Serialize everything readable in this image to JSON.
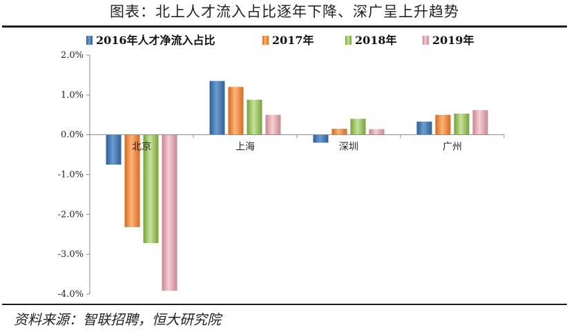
{
  "header": {
    "title": "图表：北上人才流入占比逐年下降、深广呈上升趋势"
  },
  "footer": {
    "source": "资料来源：智联招聘，恒大研究院"
  },
  "chart_data": {
    "type": "bar",
    "title": "图表：北上人才流入占比逐年下降、深广呈上升趋势",
    "xlabel": "",
    "ylabel": "",
    "categories": [
      "北京",
      "上海",
      "深圳",
      "广州"
    ],
    "series": [
      {
        "name": "2016年人才净流入占比",
        "color": "#4f81bd",
        "values": [
          -0.75,
          1.35,
          -0.2,
          0.33
        ]
      },
      {
        "name": "2017年",
        "color": "#f79646",
        "values": [
          -2.32,
          1.2,
          0.15,
          0.5
        ]
      },
      {
        "name": "2018年",
        "color": "#9bbb59",
        "values": [
          -2.72,
          0.88,
          0.4,
          0.53
        ]
      },
      {
        "name": "2019年",
        "color": "#e6a6ae",
        "values": [
          -3.92,
          0.5,
          0.14,
          0.62
        ]
      }
    ],
    "ylim": [
      -4.0,
      2.0
    ],
    "yticks": [
      "-4.0%",
      "-3.0%",
      "-2.0%",
      "-1.0%",
      "0.0%",
      "1.0%",
      "2.0%"
    ],
    "ytick_values": [
      -4.0,
      -3.0,
      -2.0,
      -1.0,
      0.0,
      1.0,
      2.0
    ],
    "grid": false,
    "legend_position": "top"
  }
}
